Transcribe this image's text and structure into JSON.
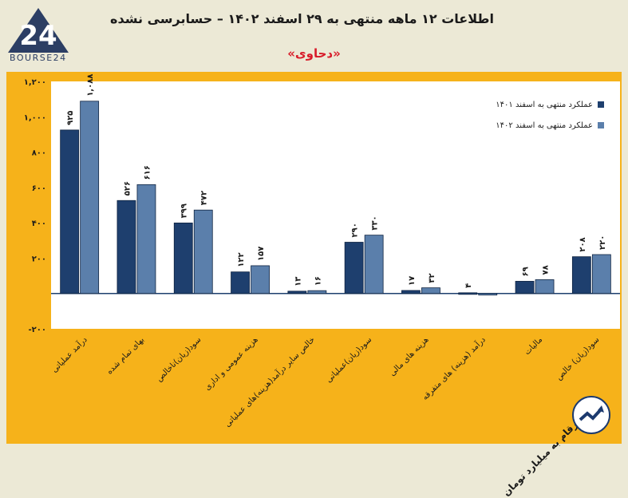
{
  "header": {
    "title": "اطلاعات ۱۲ ماهه منتهی به ۲۹ اسفند ۱۴۰۲ – حسابرسی نشده",
    "subtitle": "«دحاوی»",
    "logo_text": "BOURSE24"
  },
  "footer_note": "ارقام به میلیارد تومان",
  "colors": {
    "series_1": "#1e3f6e",
    "series_2": "#5b7fab",
    "panel": "#f6b21a",
    "title_accent": "#d81c2a"
  },
  "chart_data": {
    "type": "bar",
    "title": "اطلاعات ۱۲ ماهه منتهی به ۲۹ اسفند ۱۴۰۲ – حسابرسی نشده",
    "xlabel": "",
    "ylabel": "",
    "ylim": [
      -200,
      1200
    ],
    "yticks": [
      -200,
      0,
      200,
      400,
      600,
      800,
      1000,
      1200
    ],
    "ytick_labels": [
      "-۲۰۰",
      "",
      "۲۰۰",
      "۴۰۰",
      "۶۰۰",
      "۸۰۰",
      "۱,۰۰۰",
      "۱,۲۰۰"
    ],
    "grid": false,
    "legend_position": "top-right",
    "categories": [
      "درآمد عملیاتی",
      "بهای تمام شده",
      "سود(زیان)ناخالص",
      "هزینه عمومی و اداری",
      "خالص سایر درآمد(هزینه)های عملیاتی",
      "سود(زیان)عملیاتی",
      "هزینه های مالی",
      "درآمد (هزینه) های متفرقه",
      "مالیات",
      "سود(زیان) خالص"
    ],
    "series": [
      {
        "name": "عملکرد منتهی به اسفند ۱۴۰۱",
        "values": [
          925,
          526,
          399,
          122,
          13,
          290,
          17,
          4,
          69,
          208
        ],
        "labels": [
          "۹۲۵",
          "۵۲۶",
          "۳۹۹",
          "۱۲۲",
          "۱۳",
          "۲۹۰",
          "۱۷",
          "۴",
          "۶۹",
          "۲۰۸"
        ]
      },
      {
        "name": "عملکرد منتهی به اسفند ۱۴۰۲",
        "values": [
          1088,
          616,
          472,
          157,
          16,
          330,
          32,
          -4,
          78,
          220
        ],
        "labels": [
          "۱,۰۸۸",
          "۶۱۶",
          "۴۷۲",
          "۱۵۷",
          "۱۶",
          "۳۳۰",
          "۳۲",
          "",
          "۷۸",
          "۲۲۰"
        ]
      }
    ]
  }
}
